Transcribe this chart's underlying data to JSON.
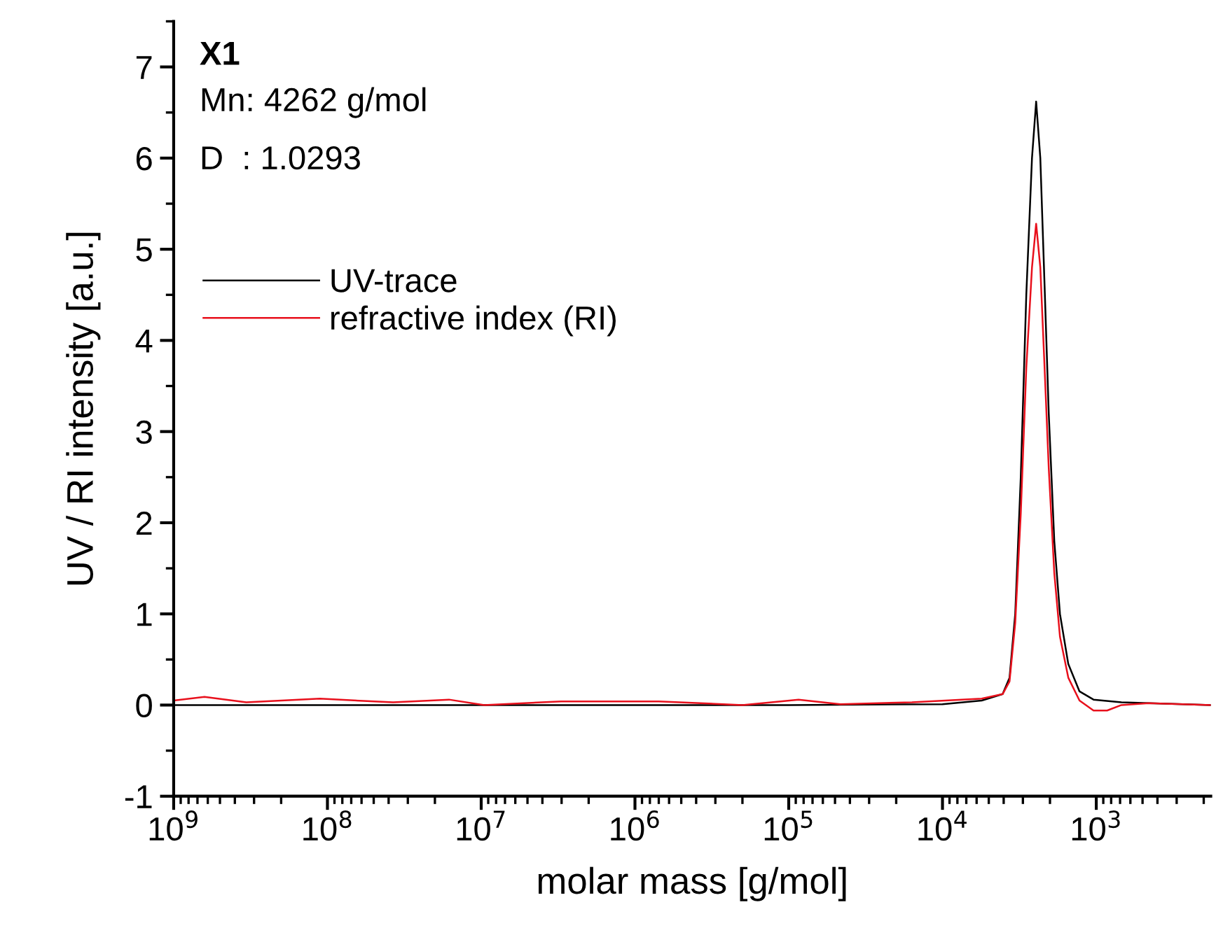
{
  "chart_data": {
    "type": "line",
    "title": "X1",
    "annotations": [
      "Mn: 4262 g/mol",
      "D  : 1.0293"
    ],
    "xlabel": "molar mass [g/mol]",
    "ylabel": "UV / RI intensity [a.u.]",
    "log": "x",
    "xlim": [
      1000000000,
      180
    ],
    "ylim": [
      -1,
      7.5
    ],
    "xticks": [
      {
        "value": 1000000000,
        "label": "10$^{9}$"
      },
      {
        "value": 100000000,
        "label": "10$^{8}$"
      },
      {
        "value": 10000000,
        "label": "10$^{7}$"
      },
      {
        "value": 1000000,
        "label": "10$^{6}$"
      },
      {
        "value": 100000,
        "label": "10$^{5}$"
      },
      {
        "value": 10000,
        "label": "10$^{4}$"
      },
      {
        "value": 1000,
        "label": "10$^{3}$"
      }
    ],
    "yticks": [
      -1,
      0,
      1,
      2,
      3,
      4,
      5,
      6,
      7
    ],
    "grid": false,
    "legend": "top left",
    "line_style": "solid",
    "marker": "none",
    "series": [
      {
        "name": "UV-trace",
        "color": "#000000",
        "x": [
          1000000000,
          10000000,
          100000,
          10000,
          5560,
          4064,
          3664,
          3365,
          3097,
          2851,
          2618,
          2460,
          2311,
          2168,
          2037,
          1875,
          1722,
          1520,
          1285,
          1042,
          686,
          180
        ],
        "values": [
          0,
          0,
          0,
          0.01,
          0.05,
          0.12,
          0.3,
          1.0,
          2.5,
          4.5,
          6.0,
          6.62,
          6.0,
          4.6,
          3.2,
          1.8,
          1.0,
          0.45,
          0.15,
          0.06,
          0.03,
          0
        ]
      },
      {
        "name": "refractive index (RI)",
        "color": "#e8101c",
        "x": [
          1000000000,
          630000000,
          337000000,
          112000000,
          37400000,
          16200000,
          9550000,
          3020000,
          700000,
          200000,
          86300,
          46100,
          15800,
          5560,
          4064,
          3664,
          3365,
          3097,
          2851,
          2618,
          2460,
          2311,
          2168,
          2037,
          1875,
          1722,
          1520,
          1285,
          1042,
          850,
          686,
          457,
          180
        ],
        "values": [
          0.05,
          0.09,
          0.03,
          0.07,
          0.03,
          0.06,
          0.0,
          0.04,
          0.04,
          0.0,
          0.06,
          0.01,
          0.03,
          0.07,
          0.12,
          0.26,
          0.9,
          2.1,
          3.7,
          4.8,
          5.28,
          4.8,
          3.7,
          2.6,
          1.45,
          0.75,
          0.3,
          0.05,
          -0.06,
          -0.06,
          0.0,
          0.02,
          0
        ]
      }
    ]
  }
}
